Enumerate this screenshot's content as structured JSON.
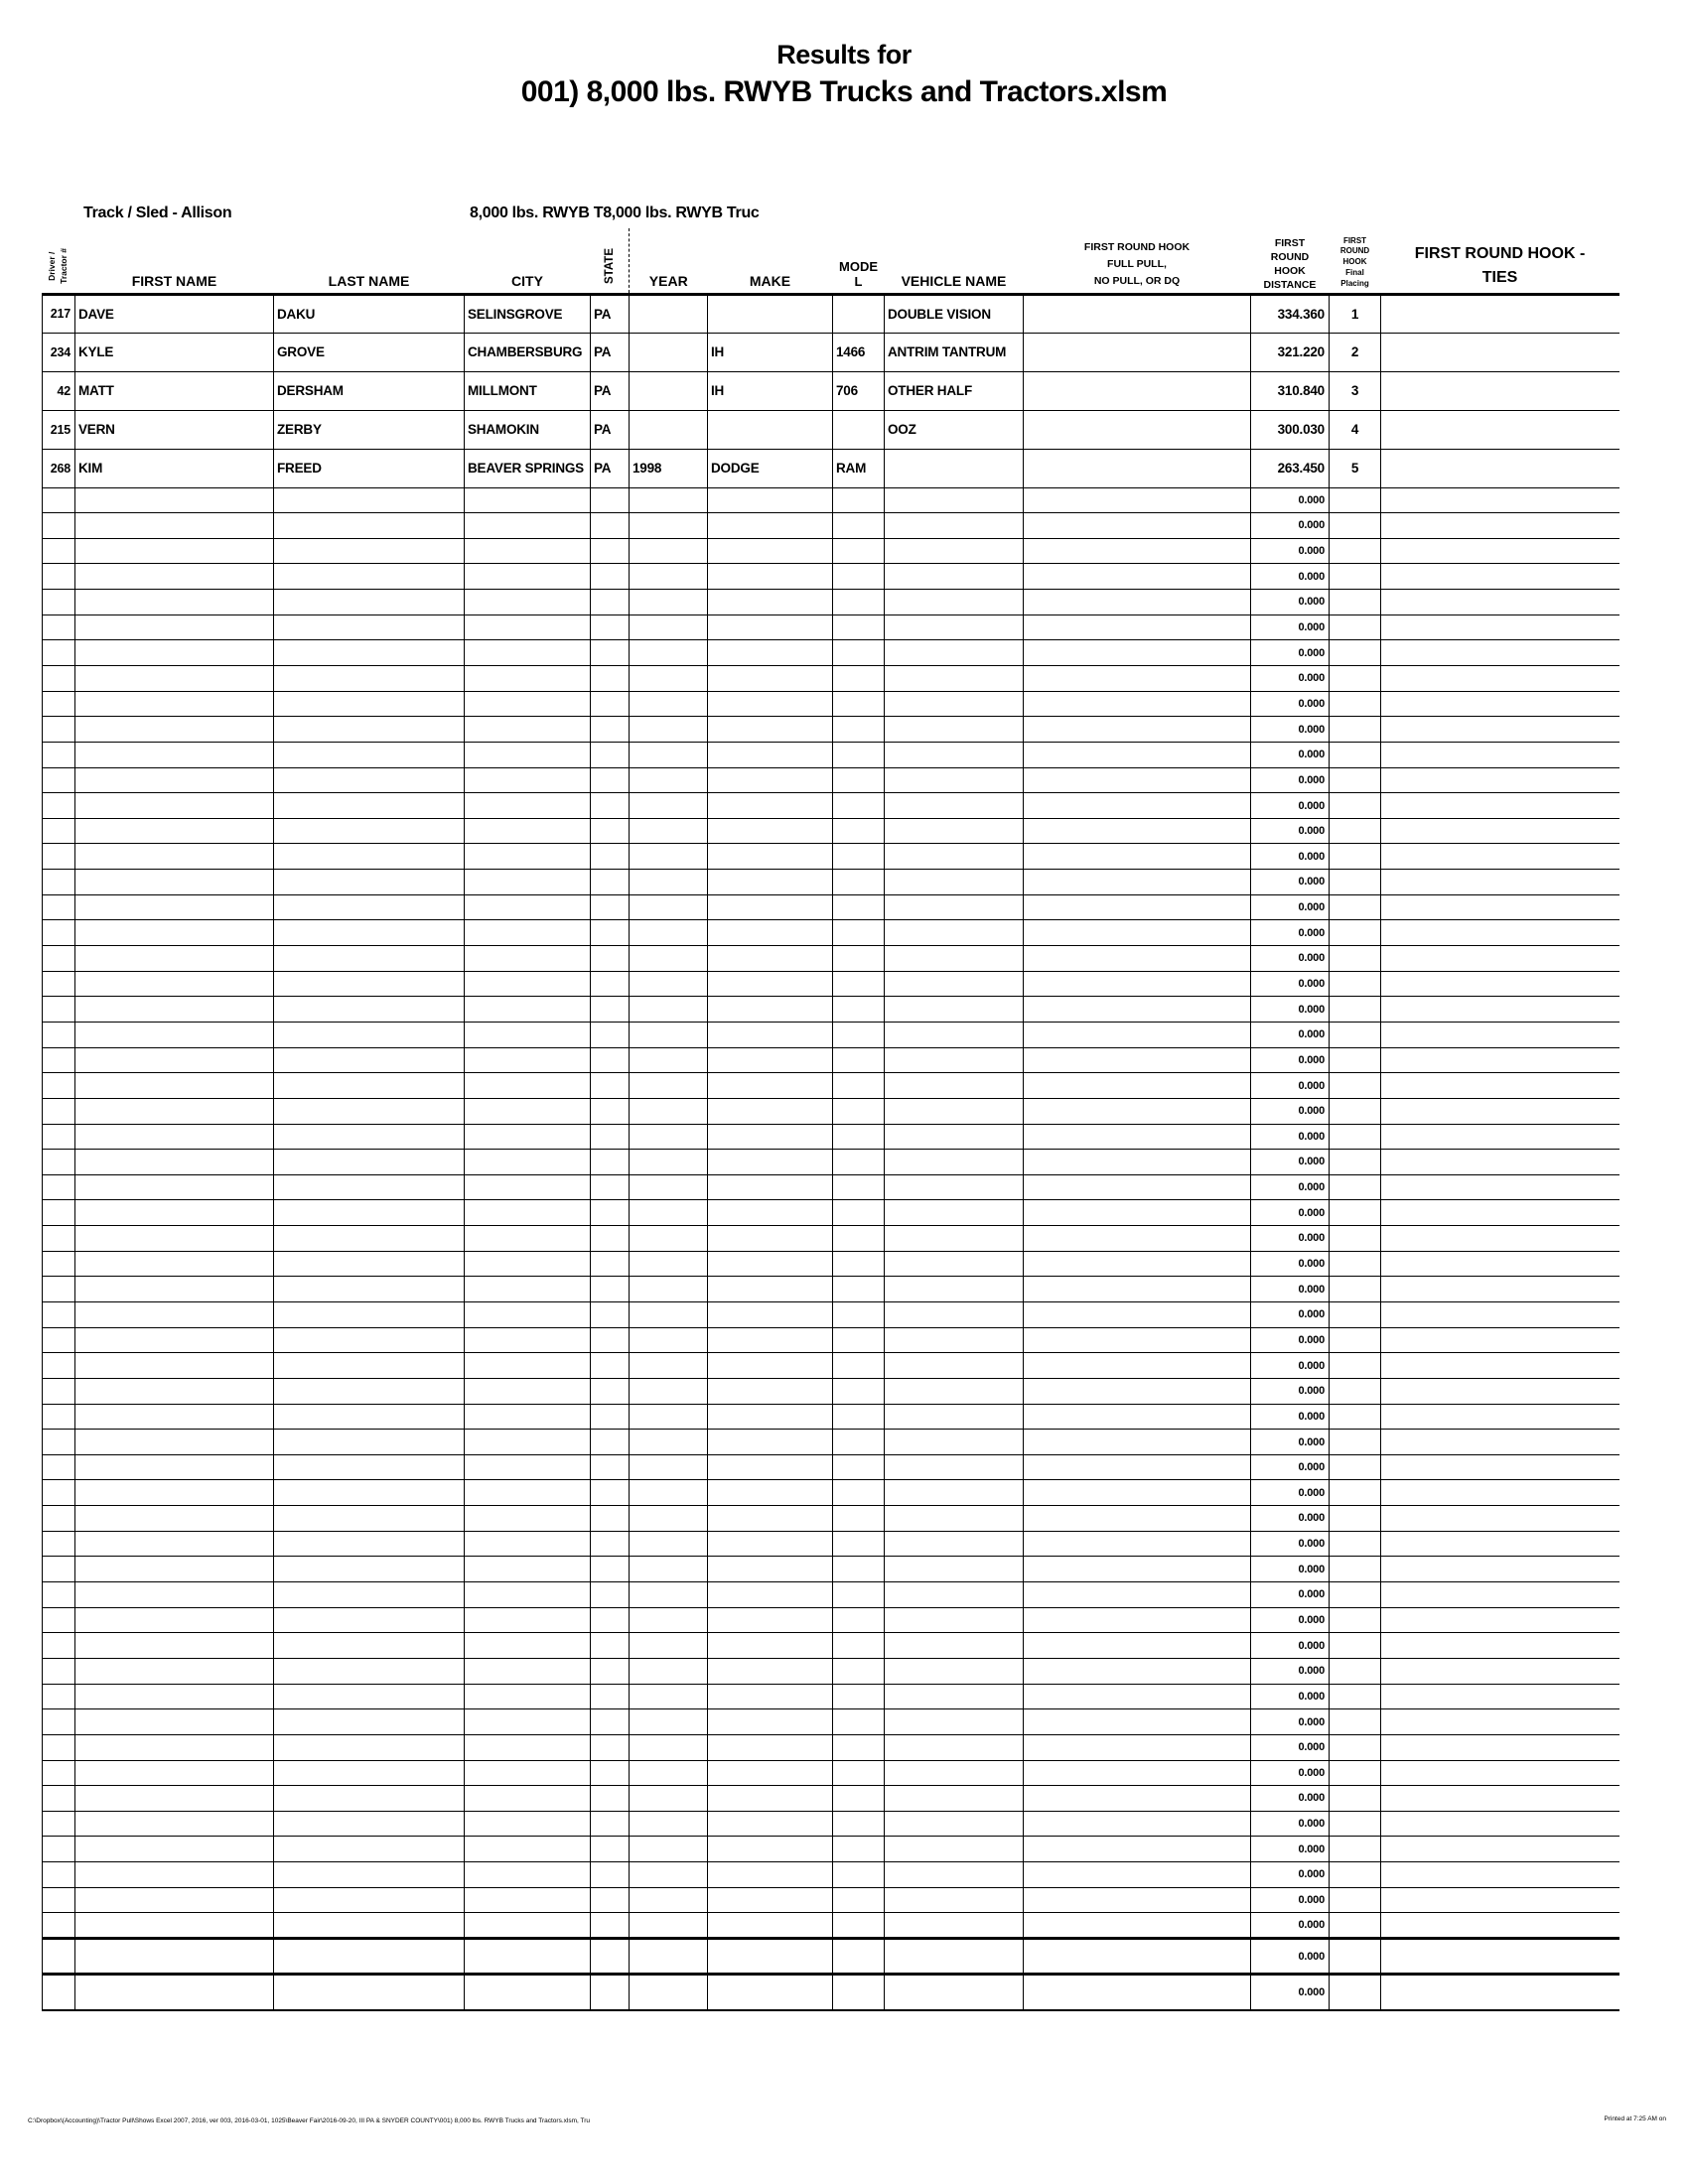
{
  "title": {
    "line1": "Results for",
    "line2": "001) 8,000 lbs. RWYB Trucks and Tractors.xlsm"
  },
  "group_header": {
    "track_sled": "Track / Sled - Allison",
    "class_label": "8,000 lbs. RWYB T8,000 lbs. RWYB Truc"
  },
  "columns": [
    {
      "key": "driver",
      "label": "Driver /\nTractor #"
    },
    {
      "key": "first",
      "label": "FIRST NAME"
    },
    {
      "key": "last",
      "label": "LAST NAME"
    },
    {
      "key": "city",
      "label": "CITY"
    },
    {
      "key": "state",
      "label": "STATE"
    },
    {
      "key": "year",
      "label": "YEAR"
    },
    {
      "key": "make",
      "label": "MAKE"
    },
    {
      "key": "model",
      "label": "MODEL"
    },
    {
      "key": "vehicle",
      "label": "VEHICLE NAME"
    },
    {
      "key": "fullpull",
      "label": "FIRST ROUND HOOK\nFULL PULL,\nNO PULL, OR DQ"
    },
    {
      "key": "distance",
      "label": "FIRST\nROUND\nHOOK\nDISTANCE"
    },
    {
      "key": "placing",
      "label": "FIRST\nROUND\nHOOK\nFinal\nPlacing"
    },
    {
      "key": "ties",
      "label": "FIRST ROUND HOOK -\nTIES"
    }
  ],
  "rows": [
    {
      "driver": "217",
      "first": "DAVE",
      "last": "DAKU",
      "city": "SELINSGROVE",
      "state": "PA",
      "year": "",
      "make": "",
      "model": "",
      "vehicle": "DOUBLE VISION",
      "fullpull": "",
      "distance": "334.360",
      "placing": "1",
      "ties": ""
    },
    {
      "driver": "234",
      "first": "KYLE",
      "last": "GROVE",
      "city": "CHAMBERSBURG",
      "state": "PA",
      "year": "",
      "make": "IH",
      "model": "1466",
      "vehicle": "ANTRIM TANTRUM",
      "fullpull": "",
      "distance": "321.220",
      "placing": "2",
      "ties": ""
    },
    {
      "driver": "42",
      "first": "MATT",
      "last": "DERSHAM",
      "city": "MILLMONT",
      "state": "PA",
      "year": "",
      "make": "IH",
      "model": "706",
      "vehicle": "OTHER HALF",
      "fullpull": "",
      "distance": "310.840",
      "placing": "3",
      "ties": ""
    },
    {
      "driver": "215",
      "first": "VERN",
      "last": "ZERBY",
      "city": "SHAMOKIN",
      "state": "PA",
      "year": "",
      "make": "",
      "model": "",
      "vehicle": "OOZ",
      "fullpull": "",
      "distance": "300.030",
      "placing": "4",
      "ties": ""
    },
    {
      "driver": "268",
      "first": "KIM",
      "last": "FREED",
      "city": "BEAVER SPRINGS",
      "state": "PA",
      "year": "1998",
      "make": "DODGE",
      "model": "RAM",
      "vehicle": "",
      "fullpull": "",
      "distance": "263.450",
      "placing": "5",
      "ties": ""
    }
  ],
  "empty_rows": {
    "distance_value": "0.000",
    "count_normal": 57,
    "count_tall": 2
  },
  "footer": {
    "left": "C:\\Dropbox\\(Accounting)\\Tractor Pull\\Shows Excel 2007, 2016, ver 003, 2016-03-01, 1025\\Beaver Fair\\2016-09-20, III PA & SNYDER COUNTY\\001) 8,000 lbs. RWYB Trucks and Tractors.xlsm, Tru",
    "right": "Printed at 7:25 AM on"
  }
}
